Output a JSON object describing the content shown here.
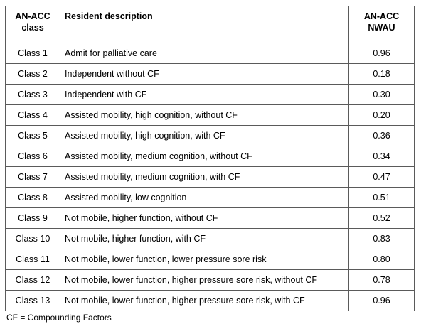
{
  "table": {
    "headers": {
      "class_line1": "AN-ACC",
      "class_line2": "class",
      "description": "Resident description",
      "nwau_line1": "AN-ACC",
      "nwau_line2": "NWAU"
    },
    "rows": [
      {
        "class": "Class 1",
        "description": "Admit for palliative care",
        "nwau": "0.96"
      },
      {
        "class": "Class 2",
        "description": "Independent without CF",
        "nwau": "0.18"
      },
      {
        "class": "Class 3",
        "description": "Independent with CF",
        "nwau": "0.30"
      },
      {
        "class": "Class 4",
        "description": "Assisted mobility, high cognition, without CF",
        "nwau": "0.20"
      },
      {
        "class": "Class 5",
        "description": "Assisted mobility, high cognition, with CF",
        "nwau": "0.36"
      },
      {
        "class": "Class 6",
        "description": "Assisted mobility, medium cognition, without CF",
        "nwau": "0.34"
      },
      {
        "class": "Class 7",
        "description": "Assisted mobility, medium cognition, with CF",
        "nwau": "0.47"
      },
      {
        "class": "Class 8",
        "description": "Assisted mobility, low cognition",
        "nwau": "0.51"
      },
      {
        "class": "Class 9",
        "description": "Not mobile, higher function, without CF",
        "nwau": "0.52"
      },
      {
        "class": "Class 10",
        "description": "Not mobile, higher function, with CF",
        "nwau": "0.83"
      },
      {
        "class": "Class 11",
        "description": "Not mobile, lower function, lower pressure sore risk",
        "nwau": "0.80"
      },
      {
        "class": "Class 12",
        "description": "Not mobile, lower function, higher pressure sore risk, without CF",
        "nwau": "0.78"
      },
      {
        "class": "Class 13",
        "description": "Not mobile, lower function, higher pressure sore risk, with CF",
        "nwau": "0.96"
      }
    ]
  },
  "footnote": "CF = Compounding Factors",
  "colors": {
    "border": "#5a5a5a",
    "text": "#000000",
    "background": "#ffffff"
  }
}
